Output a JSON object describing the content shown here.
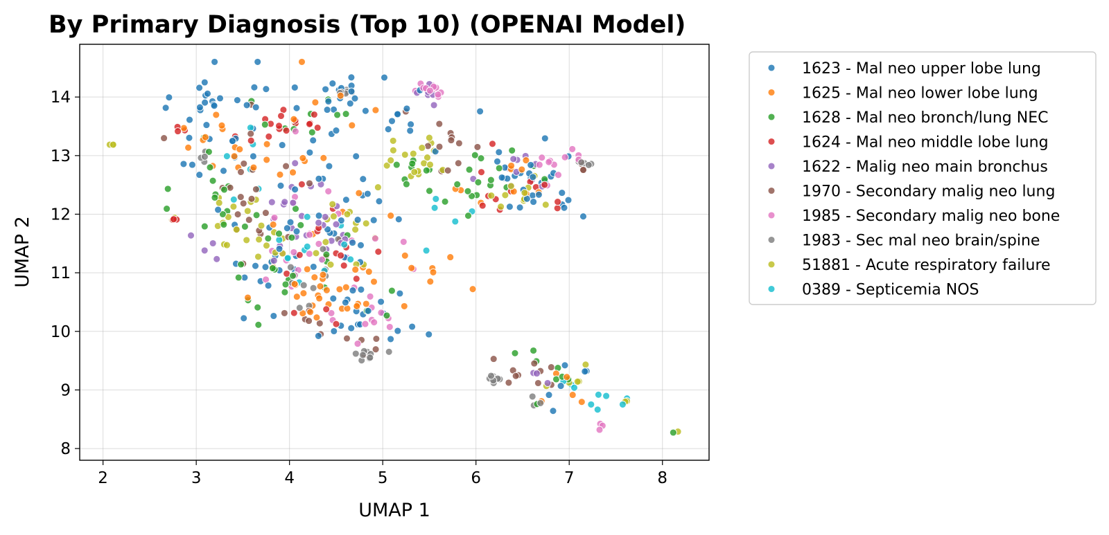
{
  "chart_data": {
    "type": "scatter",
    "title": "By Primary Diagnosis (Top 10) (OPENAI Model)",
    "xlabel": "UMAP 1",
    "ylabel": "UMAP 2",
    "xlim": [
      1.75,
      8.5
    ],
    "ylim": [
      7.8,
      14.9
    ],
    "xticks": [
      2,
      3,
      4,
      5,
      6,
      7,
      8
    ],
    "yticks": [
      8,
      9,
      10,
      11,
      12,
      13,
      14
    ],
    "grid": true,
    "legend_position": "outside-right",
    "series": [
      {
        "name": "1623 - Mal neo upper lobe lung",
        "color": "#1f77b4",
        "clusters": [
          [
            [
              4.3,
              12.4
            ],
            [
              1.0,
              1.9
            ],
            42
          ],
          [
            [
              3.2,
              13.6
            ],
            [
              0.45,
              1.2
            ],
            32
          ],
          [
            [
              6.6,
              12.6
            ],
            [
              0.6,
              0.7
            ],
            30
          ],
          [
            [
              4.4,
              14.1
            ],
            [
              0.6,
              0.3
            ],
            15
          ],
          [
            [
              4.8,
              10.3
            ],
            [
              0.8,
              0.6
            ],
            20
          ],
          [
            [
              5.4,
              13.6
            ],
            [
              0.4,
              0.4
            ],
            10
          ],
          [
            [
              3.8,
              11.0
            ],
            [
              0.5,
              0.6
            ],
            12
          ],
          [
            [
              6.9,
              9.2
            ],
            [
              0.4,
              0.6
            ],
            6
          ]
        ]
      },
      {
        "name": "1625 - Mal neo lower lobe lung",
        "color": "#ff7f0e",
        "clusters": [
          [
            [
              4.4,
              10.7
            ],
            [
              0.6,
              0.6
            ],
            30
          ],
          [
            [
              4.2,
              12.8
            ],
            [
              1.0,
              1.6
            ],
            22
          ],
          [
            [
              3.3,
              13.3
            ],
            [
              0.4,
              0.6
            ],
            10
          ],
          [
            [
              6.4,
              12.4
            ],
            [
              0.5,
              0.6
            ],
            10
          ],
          [
            [
              5.6,
              11.0
            ],
            [
              0.5,
              0.5
            ],
            8
          ],
          [
            [
              6.9,
              8.9
            ],
            [
              0.3,
              0.4
            ],
            5
          ]
        ]
      },
      {
        "name": "1628 - Mal neo bronch/lung NEC",
        "color": "#2ca02c",
        "clusters": [
          [
            [
              4.0,
              11.3
            ],
            [
              1.0,
              1.2
            ],
            28
          ],
          [
            [
              6.1,
              12.5
            ],
            [
              0.5,
              0.6
            ],
            18
          ],
          [
            [
              3.2,
              12.6
            ],
            [
              0.4,
              1.2
            ],
            12
          ],
          [
            [
              5.3,
              12.8
            ],
            [
              0.3,
              0.8
            ],
            8
          ],
          [
            [
              4.2,
              13.7
            ],
            [
              0.5,
              0.6
            ],
            10
          ],
          [
            [
              6.8,
              9.3
            ],
            [
              0.5,
              0.7
            ],
            8
          ],
          [
            [
              8.12,
              8.25
            ],
            [
              0.04,
              0.04
            ],
            1
          ]
        ]
      },
      {
        "name": "1624 - Mal neo middle lobe lung",
        "color": "#d62728",
        "clusters": [
          [
            [
              3.9,
              13.5
            ],
            [
              0.6,
              0.3
            ],
            16
          ],
          [
            [
              4.3,
              11.2
            ],
            [
              0.7,
              1.0
            ],
            18
          ],
          [
            [
              6.5,
              12.5
            ],
            [
              0.6,
              0.5
            ],
            12
          ],
          [
            [
              2.8,
              13.5
            ],
            [
              0.15,
              0.2
            ],
            3
          ],
          [
            [
              2.78,
              11.92
            ],
            [
              0.06,
              0.05
            ],
            3
          ]
        ]
      },
      {
        "name": "1622 - Malig neo main bronchus",
        "color": "#9467bd",
        "clusters": [
          [
            [
              4.3,
              12.0
            ],
            [
              0.6,
              0.9
            ],
            25
          ],
          [
            [
              3.2,
              11.4
            ],
            [
              0.2,
              0.3
            ],
            4
          ],
          [
            [
              5.5,
              14.0
            ],
            [
              0.2,
              0.2
            ],
            6
          ],
          [
            [
              6.4,
              12.6
            ],
            [
              0.5,
              0.5
            ],
            10
          ],
          [
            [
              6.8,
              9.1
            ],
            [
              0.2,
              0.2
            ],
            3
          ]
        ]
      },
      {
        "name": "1970 - Secondary malig neo lung",
        "color": "#8c564b",
        "clusters": [
          [
            [
              3.6,
              12.5
            ],
            [
              0.7,
              1.5
            ],
            22
          ],
          [
            [
              5.6,
              13.2
            ],
            [
              0.5,
              0.5
            ],
            12
          ],
          [
            [
              6.6,
              9.4
            ],
            [
              0.4,
              0.5
            ],
            10
          ],
          [
            [
              4.3,
              10.2
            ],
            [
              0.3,
              0.3
            ],
            6
          ],
          [
            [
              4.8,
              9.7
            ],
            [
              0.2,
              0.2
            ],
            5
          ],
          [
            [
              7.1,
              12.8
            ],
            [
              0.1,
              0.2
            ],
            4
          ]
        ]
      },
      {
        "name": "1985 - Secondary malig neo bone",
        "color": "#e377c2",
        "clusters": [
          [
            [
              4.3,
              11.6
            ],
            [
              0.7,
              1.2
            ],
            26
          ],
          [
            [
              5.5,
              14.1
            ],
            [
              0.2,
              0.15
            ],
            12
          ],
          [
            [
              4.9,
              10.2
            ],
            [
              0.3,
              0.5
            ],
            10
          ],
          [
            [
              6.8,
              12.8
            ],
            [
              0.3,
              0.3
            ],
            8
          ],
          [
            [
              7.08,
              13.0
            ],
            [
              0.06,
              0.15
            ],
            4
          ],
          [
            [
              7.35,
              8.35
            ],
            [
              0.1,
              0.25
            ],
            3
          ]
        ]
      },
      {
        "name": "1983 - Sec mal neo brain/spine",
        "color": "#7f7f7f",
        "clusters": [
          [
            [
              6.2,
              9.2
            ],
            [
              0.1,
              0.05
            ],
            8
          ],
          [
            [
              4.85,
              9.6
            ],
            [
              0.15,
              0.1
            ],
            10
          ],
          [
            [
              4.6,
              14.1
            ],
            [
              0.1,
              0.05
            ],
            6
          ],
          [
            [
              7.15,
              12.85
            ],
            [
              0.1,
              0.1
            ],
            5
          ],
          [
            [
              4.3,
              11.0
            ],
            [
              0.5,
              0.6
            ],
            10
          ],
          [
            [
              6.6,
              8.8
            ],
            [
              0.1,
              0.1
            ],
            3
          ],
          [
            [
              3.1,
              13.0
            ],
            [
              0.1,
              0.2
            ],
            4
          ]
        ]
      },
      {
        "name": "51881 - Acute respiratory failure",
        "color": "#bcbd22",
        "clusters": [
          [
            [
              3.5,
              11.8
            ],
            [
              0.4,
              0.6
            ],
            22
          ],
          [
            [
              4.6,
              11.7
            ],
            [
              0.5,
              0.6
            ],
            15
          ],
          [
            [
              5.4,
              12.8
            ],
            [
              0.4,
              0.5
            ],
            18
          ],
          [
            [
              6.4,
              12.4
            ],
            [
              0.3,
              0.4
            ],
            10
          ],
          [
            [
              2.1,
              13.2
            ],
            [
              0.04,
              0.03
            ],
            3
          ],
          [
            [
              2.75,
              11.92
            ],
            [
              0.05,
              0.05
            ],
            3
          ],
          [
            [
              7.0,
              9.2
            ],
            [
              0.3,
              0.3
            ],
            5
          ],
          [
            [
              7.62,
              8.8
            ],
            [
              0.03,
              0.03
            ],
            2
          ],
          [
            [
              8.17,
              8.3
            ],
            [
              0.02,
              0.02
            ],
            1
          ]
        ]
      },
      {
        "name": "0389 - Septicemia NOS",
        "color": "#17becf",
        "clusters": [
          [
            [
              4.3,
              11.4
            ],
            [
              0.5,
              0.7
            ],
            12
          ],
          [
            [
              3.6,
              12.8
            ],
            [
              0.3,
              0.6
            ],
            6
          ],
          [
            [
              5.7,
              12.0
            ],
            [
              0.3,
              0.5
            ],
            5
          ],
          [
            [
              7.4,
              8.8
            ],
            [
              0.2,
              0.15
            ],
            6
          ],
          [
            [
              7.0,
              9.1
            ],
            [
              0.1,
              0.1
            ],
            3
          ]
        ]
      }
    ]
  }
}
